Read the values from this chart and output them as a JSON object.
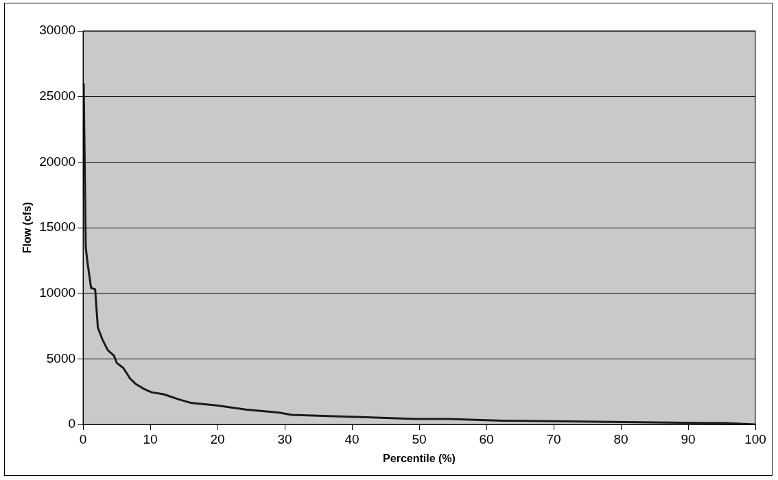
{
  "chart_data": {
    "type": "line",
    "xlabel": "Percentile (%)",
    "ylabel": "Flow (cfs)",
    "xlim": [
      0,
      100
    ],
    "xticks": [
      0,
      10,
      20,
      30,
      40,
      50,
      60,
      70,
      80,
      90,
      100
    ],
    "ylim": [
      0,
      30000
    ],
    "yticks": [
      0,
      5000,
      10000,
      15000,
      20000,
      25000,
      30000
    ],
    "grid": "y",
    "legend": false,
    "marker": "none",
    "line_style": "solid",
    "series": [
      {
        "color": "#1a1a1a",
        "x": [
          0.1,
          0.2,
          0.4,
          0.7,
          1.2,
          1.8,
          2.2,
          2.9,
          3.7,
          4.6,
          5.0,
          6.0,
          7.0,
          7.8,
          9.1,
          10.2,
          12,
          14.3,
          16,
          19.9,
          24.2,
          29.2,
          31,
          40.7,
          49.4,
          54.4,
          62.3,
          95.5,
          100
        ],
        "values": [
          26000,
          26000,
          13500,
          12200,
          10400,
          10300,
          7400,
          6450,
          5650,
          5250,
          4700,
          4300,
          3500,
          3100,
          2700,
          2450,
          2300,
          1900,
          1650,
          1450,
          1140,
          900,
          730,
          570,
          420,
          420,
          290,
          100,
          0
        ]
      }
    ]
  }
}
